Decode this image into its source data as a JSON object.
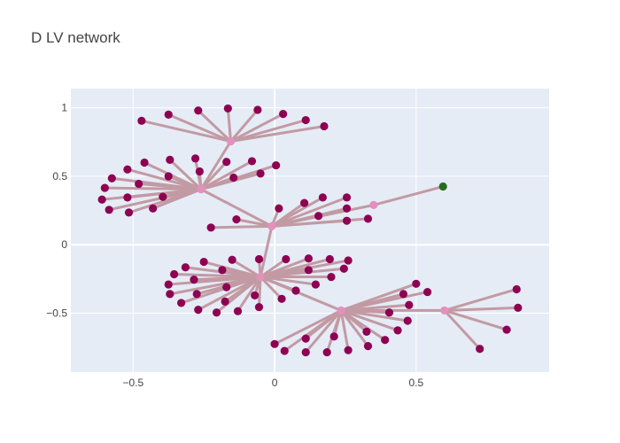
{
  "chart_data": {
    "type": "scatter",
    "title": "D LV network",
    "xlim": [
      -0.72,
      0.97
    ],
    "ylim": [
      -0.93,
      1.14
    ],
    "x_ticks": [
      -0.5,
      0,
      0.5
    ],
    "x_tick_labels": [
      "−0.5",
      "0",
      "0.5"
    ],
    "y_ticks": [
      1,
      0.5,
      0,
      -0.5
    ],
    "y_tick_labels": [
      "1",
      "0.5",
      "0",
      "−0.5"
    ],
    "grid": true,
    "legend": "none",
    "colors": {
      "plot_bg": "#e5ecf6",
      "grid": "#ffffff",
      "edge": "#c29aa3",
      "leaf": "#8e0152",
      "hub": "#e490bd",
      "root": "#2a6b22"
    },
    "hubs": [
      {
        "id": "H0",
        "x": -0.01,
        "y": 0.135
      },
      {
        "id": "H1",
        "x": -0.155,
        "y": 0.755
      },
      {
        "id": "H2",
        "x": -0.26,
        "y": 0.405
      },
      {
        "id": "H3",
        "x": 0.35,
        "y": 0.29
      },
      {
        "id": "H4",
        "x": -0.05,
        "y": -0.235
      },
      {
        "id": "H5",
        "x": 0.235,
        "y": -0.48
      },
      {
        "id": "H6",
        "x": 0.6,
        "y": -0.48
      }
    ],
    "root": {
      "x": 0.595,
      "y": 0.425
    },
    "hub_edges": [
      [
        "H0",
        "H2"
      ],
      [
        "H0",
        "H3"
      ],
      [
        "H0",
        "H4"
      ],
      [
        "H1",
        "H2"
      ],
      [
        "H5",
        "H6"
      ],
      [
        "H5",
        "H4"
      ]
    ],
    "root_edge": "H3",
    "leaves": [
      {
        "hub": "H1",
        "x": -0.47,
        "y": 0.905
      },
      {
        "hub": "H1",
        "x": -0.375,
        "y": 0.95
      },
      {
        "hub": "H1",
        "x": -0.27,
        "y": 0.98
      },
      {
        "hub": "H1",
        "x": -0.165,
        "y": 0.995
      },
      {
        "hub": "H1",
        "x": -0.06,
        "y": 0.985
      },
      {
        "hub": "H1",
        "x": 0.03,
        "y": 0.955
      },
      {
        "hub": "H1",
        "x": 0.11,
        "y": 0.91
      },
      {
        "hub": "H1",
        "x": 0.175,
        "y": 0.865
      },
      {
        "hub": "H2",
        "x": -0.52,
        "y": 0.55
      },
      {
        "hub": "H2",
        "x": -0.575,
        "y": 0.485
      },
      {
        "hub": "H2",
        "x": -0.6,
        "y": 0.415
      },
      {
        "hub": "H2",
        "x": -0.61,
        "y": 0.33
      },
      {
        "hub": "H2",
        "x": -0.585,
        "y": 0.255
      },
      {
        "hub": "H2",
        "x": -0.515,
        "y": 0.235
      },
      {
        "hub": "H2",
        "x": -0.43,
        "y": 0.265
      },
      {
        "hub": "H2",
        "x": -0.395,
        "y": 0.35
      },
      {
        "hub": "H2",
        "x": -0.48,
        "y": 0.445
      },
      {
        "hub": "H2",
        "x": -0.46,
        "y": 0.6
      },
      {
        "hub": "H2",
        "x": -0.37,
        "y": 0.62
      },
      {
        "hub": "H2",
        "x": -0.28,
        "y": 0.63
      },
      {
        "hub": "H2",
        "x": -0.265,
        "y": 0.535
      },
      {
        "hub": "H2",
        "x": -0.17,
        "y": 0.605
      },
      {
        "hub": "H2",
        "x": -0.145,
        "y": 0.49
      },
      {
        "hub": "H2",
        "x": -0.08,
        "y": 0.61
      },
      {
        "hub": "H2",
        "x": -0.05,
        "y": 0.52
      },
      {
        "hub": "H2",
        "x": 0.005,
        "y": 0.58
      },
      {
        "hub": "H2",
        "x": -0.375,
        "y": 0.5
      },
      {
        "hub": "H2",
        "x": -0.52,
        "y": 0.345
      },
      {
        "hub": "H0",
        "x": -0.225,
        "y": 0.125
      },
      {
        "hub": "H0",
        "x": -0.135,
        "y": 0.185
      },
      {
        "hub": "H0",
        "x": 0.015,
        "y": 0.265
      },
      {
        "hub": "H0",
        "x": 0.105,
        "y": 0.305
      },
      {
        "hub": "H0",
        "x": 0.17,
        "y": 0.345
      },
      {
        "hub": "H0",
        "x": 0.255,
        "y": 0.345
      },
      {
        "hub": "H0",
        "x": 0.155,
        "y": 0.21
      },
      {
        "hub": "H0",
        "x": 0.255,
        "y": 0.265
      },
      {
        "hub": "H0",
        "x": 0.255,
        "y": 0.175
      },
      {
        "hub": "H0",
        "x": 0.33,
        "y": 0.19
      },
      {
        "hub": "H4",
        "x": -0.355,
        "y": -0.215
      },
      {
        "hub": "H4",
        "x": -0.315,
        "y": -0.165
      },
      {
        "hub": "H4",
        "x": -0.25,
        "y": -0.125
      },
      {
        "hub": "H4",
        "x": -0.15,
        "y": -0.11
      },
      {
        "hub": "H4",
        "x": -0.055,
        "y": -0.105
      },
      {
        "hub": "H4",
        "x": 0.04,
        "y": -0.105
      },
      {
        "hub": "H4",
        "x": 0.12,
        "y": -0.1
      },
      {
        "hub": "H4",
        "x": 0.195,
        "y": -0.105
      },
      {
        "hub": "H4",
        "x": 0.26,
        "y": -0.115
      },
      {
        "hub": "H4",
        "x": 0.245,
        "y": -0.175
      },
      {
        "hub": "H4",
        "x": 0.2,
        "y": -0.235
      },
      {
        "hub": "H4",
        "x": 0.145,
        "y": -0.29
      },
      {
        "hub": "H4",
        "x": 0.075,
        "y": -0.335
      },
      {
        "hub": "H4",
        "x": 0.025,
        "y": -0.395
      },
      {
        "hub": "H4",
        "x": -0.055,
        "y": -0.455
      },
      {
        "hub": "H4",
        "x": -0.13,
        "y": -0.485
      },
      {
        "hub": "H4",
        "x": -0.205,
        "y": -0.495
      },
      {
        "hub": "H4",
        "x": -0.27,
        "y": -0.475
      },
      {
        "hub": "H4",
        "x": -0.33,
        "y": -0.425
      },
      {
        "hub": "H4",
        "x": -0.37,
        "y": -0.36
      },
      {
        "hub": "H4",
        "x": -0.375,
        "y": -0.29
      },
      {
        "hub": "H4",
        "x": -0.285,
        "y": -0.255
      },
      {
        "hub": "H4",
        "x": -0.275,
        "y": -0.36
      },
      {
        "hub": "H4",
        "x": -0.175,
        "y": -0.415
      },
      {
        "hub": "H4",
        "x": -0.07,
        "y": -0.37
      },
      {
        "hub": "H4",
        "x": 0.12,
        "y": -0.185
      },
      {
        "hub": "H4",
        "x": -0.185,
        "y": -0.185
      },
      {
        "hub": "H4",
        "x": -0.17,
        "y": -0.31
      },
      {
        "hub": "H5",
        "x": 0.5,
        "y": -0.285
      },
      {
        "hub": "H5",
        "x": 0.54,
        "y": -0.345
      },
      {
        "hub": "H5",
        "x": 0.455,
        "y": -0.36
      },
      {
        "hub": "H5",
        "x": 0.475,
        "y": -0.44
      },
      {
        "hub": "H5",
        "x": 0.405,
        "y": -0.495
      },
      {
        "hub": "H5",
        "x": 0.47,
        "y": -0.555
      },
      {
        "hub": "H5",
        "x": 0.435,
        "y": -0.625
      },
      {
        "hub": "H5",
        "x": 0.39,
        "y": -0.695
      },
      {
        "hub": "H5",
        "x": 0.325,
        "y": -0.635
      },
      {
        "hub": "H5",
        "x": 0.33,
        "y": -0.74
      },
      {
        "hub": "H5",
        "x": 0.26,
        "y": -0.77
      },
      {
        "hub": "H5",
        "x": 0.21,
        "y": -0.67
      },
      {
        "hub": "H5",
        "x": 0.185,
        "y": -0.785
      },
      {
        "hub": "H5",
        "x": 0.11,
        "y": -0.685
      },
      {
        "hub": "H5",
        "x": 0.11,
        "y": -0.785
      },
      {
        "hub": "H5",
        "x": 0.035,
        "y": -0.775
      },
      {
        "hub": "H5",
        "x": 0.0,
        "y": -0.725
      },
      {
        "hub": "H6",
        "x": 0.855,
        "y": -0.325
      },
      {
        "hub": "H6",
        "x": 0.86,
        "y": -0.46
      },
      {
        "hub": "H6",
        "x": 0.82,
        "y": -0.62
      },
      {
        "hub": "H6",
        "x": 0.725,
        "y": -0.76
      }
    ]
  }
}
